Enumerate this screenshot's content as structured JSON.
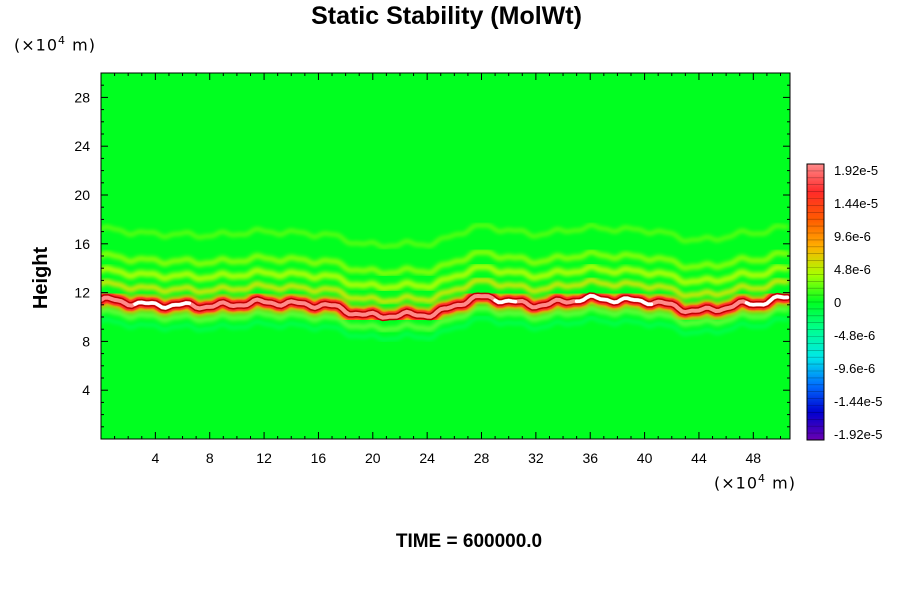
{
  "chart_data": {
    "type": "heatmap",
    "title": "Static Stability (MolWt)",
    "xlabel": "",
    "ylabel": "Height",
    "x_unit": "(×10",
    "x_unit_exp": "4",
    "x_unit_tail": " m)",
    "y_unit": "(×10",
    "y_unit_exp": "4",
    "y_unit_tail": " m)",
    "xlim": [
      0,
      50.7
    ],
    "ylim": [
      0,
      30
    ],
    "x_ticks": [
      4,
      8,
      12,
      16,
      20,
      24,
      28,
      32,
      36,
      40,
      44,
      48
    ],
    "y_ticks": [
      4,
      8,
      12,
      16,
      20,
      24,
      28
    ],
    "colorbar": {
      "labels": [
        "1.92e-5",
        "1.44e-5",
        "9.6e-6",
        "4.8e-6",
        "0",
        "-4.8e-6",
        "-9.6e-6",
        "-1.44e-5",
        "-1.92e-5"
      ],
      "range": [
        -1.92e-05,
        1.92e-05
      ]
    },
    "background_value": 0,
    "stable_layer": {
      "description_points_x": [
        0,
        4,
        8,
        12,
        16,
        20,
        24,
        28,
        32,
        36,
        40,
        44,
        48,
        50.7
      ],
      "height": [
        11.4,
        11.0,
        10.9,
        11.2,
        11.0,
        10.1,
        10.2,
        11.6,
        11.0,
        11.5,
        11.3,
        10.5,
        11.1,
        11.6
      ],
      "peak_value": 1.92e-05
    },
    "grid": false
  },
  "footer": {
    "text": "TIME = 600000.0"
  }
}
